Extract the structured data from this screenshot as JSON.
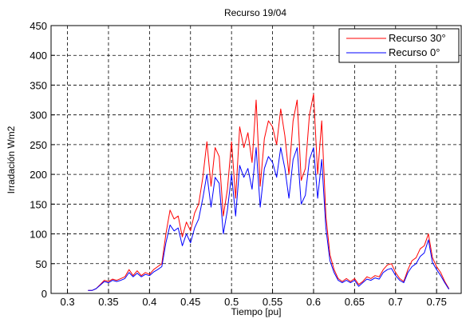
{
  "chart_data": {
    "type": "line",
    "title": "Recurso 19/04",
    "xlabel": "Tiempo [pu]",
    "ylabel": "Irradación Wm2",
    "xlim": [
      0.28,
      0.78
    ],
    "ylim": [
      0,
      450
    ],
    "xticks": [
      0.3,
      0.35,
      0.4,
      0.45,
      0.5,
      0.55,
      0.6,
      0.65,
      0.7,
      0.75
    ],
    "xtick_labels": [
      "0.3",
      "0.35",
      "0.4",
      "0.45",
      "0.5",
      "0.55",
      "0.6",
      "0.65",
      "0.7",
      "0.75"
    ],
    "yticks": [
      0,
      50,
      100,
      150,
      200,
      250,
      300,
      350,
      400,
      450
    ],
    "ytick_labels": [
      "0",
      "50",
      "100",
      "150",
      "200",
      "250",
      "300",
      "350",
      "400",
      "450"
    ],
    "grid": true,
    "legend_position": "top-right",
    "series": [
      {
        "name": "Recurso 30°",
        "color": "#ff0000",
        "x": [
          0.325,
          0.33,
          0.335,
          0.34,
          0.345,
          0.35,
          0.355,
          0.36,
          0.365,
          0.37,
          0.375,
          0.38,
          0.385,
          0.39,
          0.395,
          0.4,
          0.405,
          0.41,
          0.415,
          0.42,
          0.425,
          0.43,
          0.435,
          0.44,
          0.445,
          0.45,
          0.455,
          0.46,
          0.465,
          0.47,
          0.475,
          0.48,
          0.485,
          0.49,
          0.495,
          0.5,
          0.505,
          0.51,
          0.515,
          0.52,
          0.525,
          0.53,
          0.535,
          0.54,
          0.545,
          0.55,
          0.555,
          0.56,
          0.565,
          0.57,
          0.575,
          0.58,
          0.585,
          0.59,
          0.595,
          0.6,
          0.605,
          0.61,
          0.615,
          0.62,
          0.625,
          0.63,
          0.635,
          0.64,
          0.645,
          0.65,
          0.655,
          0.66,
          0.665,
          0.67,
          0.675,
          0.68,
          0.685,
          0.69,
          0.695,
          0.7,
          0.705,
          0.71,
          0.715,
          0.72,
          0.725,
          0.73,
          0.735,
          0.74,
          0.745,
          0.75,
          0.755,
          0.76,
          0.765
        ],
        "values": [
          5,
          5,
          8,
          15,
          22,
          20,
          24,
          22,
          25,
          28,
          40,
          30,
          38,
          30,
          35,
          32,
          40,
          45,
          50,
          100,
          140,
          125,
          130,
          95,
          120,
          105,
          135,
          150,
          195,
          255,
          180,
          245,
          230,
          130,
          175,
          255,
          160,
          280,
          245,
          270,
          220,
          325,
          180,
          260,
          290,
          280,
          250,
          310,
          265,
          200,
          290,
          325,
          190,
          210,
          300,
          335,
          200,
          290,
          130,
          65,
          40,
          25,
          20,
          25,
          20,
          25,
          15,
          20,
          28,
          25,
          30,
          28,
          40,
          48,
          50,
          35,
          25,
          20,
          40,
          55,
          60,
          75,
          80,
          100,
          60,
          45,
          35,
          20,
          8
        ]
      },
      {
        "name": "Recurso 0°",
        "color": "#0000ff",
        "x": [
          0.325,
          0.33,
          0.335,
          0.34,
          0.345,
          0.35,
          0.355,
          0.36,
          0.365,
          0.37,
          0.375,
          0.38,
          0.385,
          0.39,
          0.395,
          0.4,
          0.405,
          0.41,
          0.415,
          0.42,
          0.425,
          0.43,
          0.435,
          0.44,
          0.445,
          0.45,
          0.455,
          0.46,
          0.465,
          0.47,
          0.475,
          0.48,
          0.485,
          0.49,
          0.495,
          0.5,
          0.505,
          0.51,
          0.515,
          0.52,
          0.525,
          0.53,
          0.535,
          0.54,
          0.545,
          0.55,
          0.555,
          0.56,
          0.565,
          0.57,
          0.575,
          0.58,
          0.585,
          0.59,
          0.595,
          0.6,
          0.605,
          0.61,
          0.615,
          0.62,
          0.625,
          0.63,
          0.635,
          0.64,
          0.645,
          0.65,
          0.655,
          0.66,
          0.665,
          0.67,
          0.675,
          0.68,
          0.685,
          0.69,
          0.695,
          0.7,
          0.705,
          0.71,
          0.715,
          0.72,
          0.725,
          0.73,
          0.735,
          0.74,
          0.745,
          0.75,
          0.755,
          0.76,
          0.765
        ],
        "values": [
          5,
          5,
          8,
          14,
          20,
          18,
          22,
          20,
          22,
          25,
          35,
          28,
          34,
          28,
          32,
          30,
          36,
          40,
          45,
          85,
          115,
          105,
          110,
          80,
          100,
          85,
          110,
          125,
          160,
          200,
          145,
          195,
          185,
          100,
          140,
          200,
          130,
          215,
          195,
          210,
          175,
          245,
          145,
          210,
          230,
          220,
          195,
          245,
          210,
          160,
          225,
          245,
          150,
          165,
          225,
          245,
          160,
          225,
          110,
          55,
          35,
          22,
          18,
          22,
          18,
          22,
          12,
          18,
          24,
          22,
          26,
          24,
          35,
          40,
          42,
          30,
          22,
          18,
          35,
          45,
          50,
          62,
          68,
          90,
          52,
          40,
          30,
          18,
          7
        ]
      }
    ]
  }
}
